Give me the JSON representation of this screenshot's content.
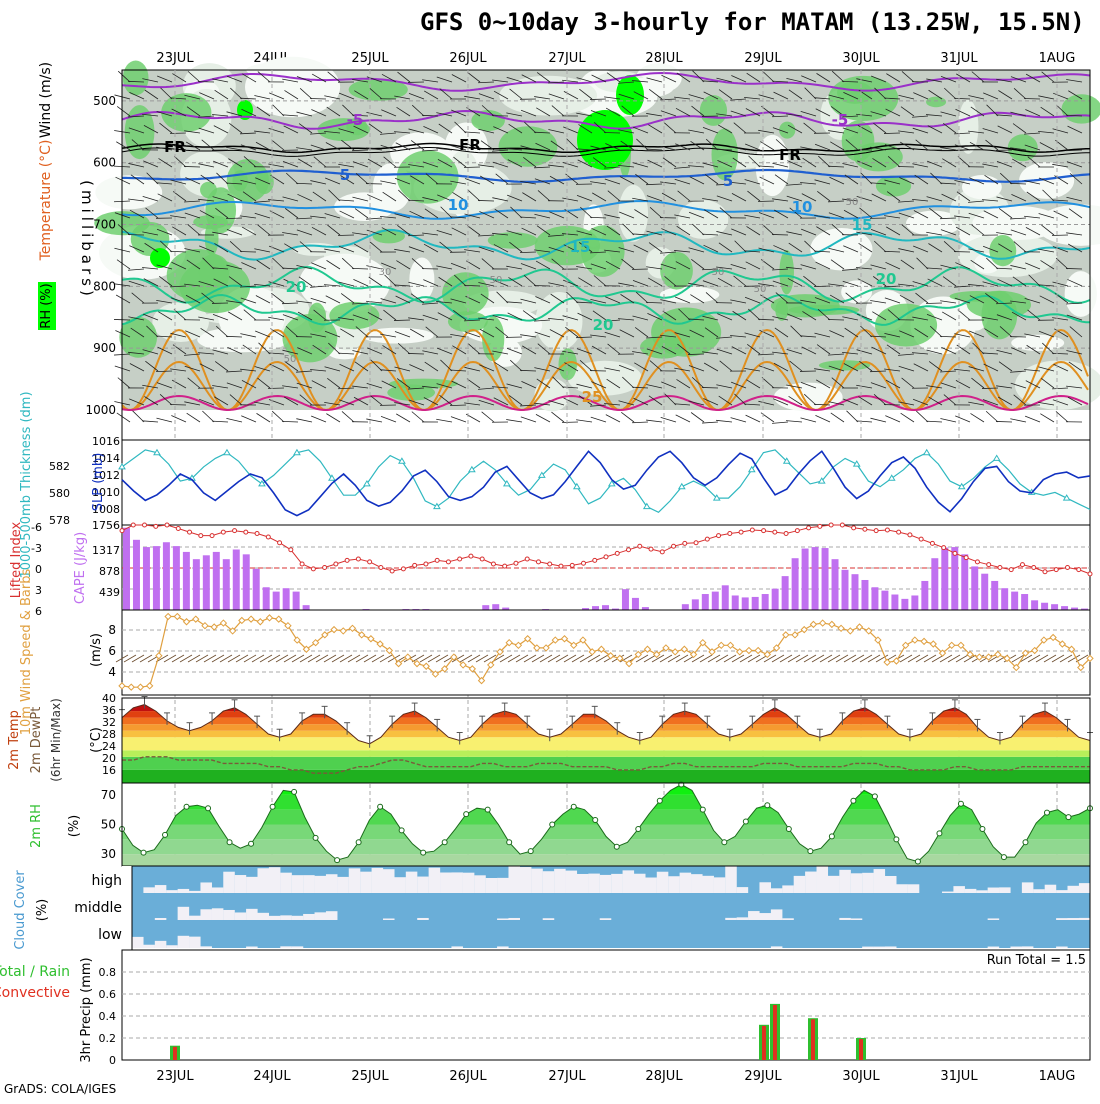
{
  "title": "GFS 0~10day 3-hourly for MATAM (13.25W, 15.5N)",
  "footer": "GrADS: COLA/IGES",
  "dates": [
    "23JUL",
    "24JUL",
    "25JUL",
    "26JUL",
    "27JUL",
    "28JUL",
    "29JUL",
    "30JUL",
    "31JUL",
    "1AUG"
  ],
  "colors": {
    "rh_green": "#6fcf6f",
    "rh_bright": "#00ff00",
    "rh_grey": "#c6cfc6",
    "rh_light": "#e6efe6",
    "temp_purple": "#9a30c9",
    "temp_blue": "#1f5fd0",
    "temp_lightblue": "#2090e0",
    "temp_cyan": "#20b8c0",
    "temp_teal": "#20c890",
    "temp_orange": "#e09020",
    "temp_magenta": "#d0208a",
    "slp": "#1030c0",
    "thickness": "#30b8c0",
    "li": "#d83030",
    "cape": "#c070f0",
    "wind10": "#e0a040",
    "barbs": "#6a4a2a",
    "dewpt": "#7a5a3a",
    "rh2m": "#2fbf2f",
    "cloud_blue": "#6aaed8",
    "cloud_white": "#f2f0f6",
    "precip_total": "#2fbf2f",
    "precip_conv": "#e03020"
  },
  "panels": {
    "upper": {
      "ylabel": "(millibars)",
      "label_wind": "Wind (m/s)",
      "label_temp": "Temperature (°C)",
      "label_rh": "RH (%)",
      "levels": [
        500,
        600,
        700,
        800,
        900,
        1000
      ],
      "isotherm_labels": [
        "-5",
        "-5",
        "5",
        "5",
        "10",
        "10",
        "15",
        "15",
        "20",
        "20",
        "20",
        "25",
        "FR",
        "FR",
        "FR"
      ],
      "rh_labels": [
        "30",
        "50",
        "50",
        "50",
        "50",
        "50"
      ]
    },
    "slp": {
      "label_left": "1000-500mb Thickness (dm)",
      "label_right": "SLP (mb)",
      "ticks_left": [
        "582",
        "580",
        "578"
      ],
      "ticks_right": [
        "1016",
        "1014",
        "1012",
        "1010",
        "1008"
      ]
    },
    "cape": {
      "label_left": "Lifted Index",
      "label_right": "CAPE (J/kg)",
      "ticks_left": [
        "-6",
        "-3",
        "0",
        "3",
        "6"
      ],
      "ticks_right": [
        "1756",
        "1317",
        "878",
        "439"
      ]
    },
    "wind10": {
      "label": "10m Wind Speed & Barbs",
      "unit": "(m/s)",
      "ticks": [
        "8",
        "6",
        "4"
      ]
    },
    "temp2m": {
      "label": "2m Temp 2m DewPt (6hr Min/Max)",
      "unit": "(°C)",
      "ticks": [
        "40",
        "36",
        "32",
        "28",
        "24",
        "20",
        "16"
      ]
    },
    "rh2m": {
      "label": "2m RH",
      "unit": "(%)",
      "ticks": [
        "70",
        "50",
        "30"
      ]
    },
    "cloud": {
      "label": "Cloud Cover",
      "unit": "(%)",
      "rows": [
        "high",
        "middle",
        "low"
      ]
    },
    "precip": {
      "label_total": "Total / Rain",
      "label_conv": "Convective",
      "ylabel": "3hr Precip (mm)",
      "ticks": [
        "0.8",
        "0.6",
        "0.4",
        "0.2",
        "0"
      ],
      "run_total": "Run Total = 1.5"
    }
  },
  "chart_data": [
    {
      "type": "line",
      "title": "SLP (mb) / 1000-500mb Thickness (dm)",
      "x_unit": "3-hourly steps from 22 JUL 12Z",
      "series": [
        {
          "name": "SLP (mb)",
          "values": [
            1011.8,
            1010.6,
            1009.6,
            1010.2,
            1011.2,
            1012.4,
            1011.8,
            1010.4,
            1009.6,
            1010.6,
            1011.6,
            1012.4,
            1012.0,
            1010.4,
            1008.6,
            1008.0,
            1008.6,
            1010.0,
            1011.4,
            1012.4,
            1011.2,
            1009.6,
            1009.0,
            1009.4,
            1010.6,
            1012.2,
            1012.8,
            1011.6,
            1010.0,
            1009.6,
            1010.0,
            1011.0,
            1012.6,
            1013.2,
            1011.8,
            1010.4,
            1009.8,
            1010.2,
            1011.6,
            1013.2,
            1014.8,
            1013.6,
            1011.8,
            1010.8,
            1011.2,
            1012.8,
            1014.2,
            1014.8,
            1013.6,
            1012.0,
            1011.2,
            1012.0,
            1013.4,
            1014.6,
            1014.0,
            1012.0,
            1010.2,
            1010.8,
            1012.4,
            1013.8,
            1014.8,
            1013.0,
            1011.0,
            1009.8,
            1010.6,
            1012.2,
            1013.6,
            1014.2,
            1013.0,
            1011.0,
            1009.4,
            1008.4,
            1009.8,
            1011.6,
            1013.0,
            1013.2,
            1011.6,
            1010.6,
            1010.4,
            1011.8,
            1012.4,
            1012.6,
            1012.0,
            1012.2
          ]
        },
        {
          "name": "1000-500mb Thickness (dm)",
          "values": [
            581.6,
            582.2,
            582.8,
            582.6,
            581.8,
            580.6,
            580.8,
            581.6,
            582.2,
            582.6,
            582.0,
            581.0,
            580.4,
            581.0,
            581.8,
            582.6,
            582.8,
            582.0,
            580.8,
            579.6,
            579.6,
            580.4,
            581.6,
            582.4,
            582.0,
            580.8,
            579.2,
            578.8,
            579.4,
            580.6,
            581.4,
            582.0,
            581.4,
            580.4,
            579.6,
            580.0,
            581.0,
            581.8,
            581.4,
            580.2,
            579.0,
            579.4,
            580.4,
            580.8,
            580.0,
            578.8,
            578.4,
            579.2,
            580.2,
            580.6,
            580.2,
            579.4,
            579.4,
            580.2,
            581.4,
            582.6,
            582.8,
            582.0,
            581.2,
            580.4,
            580.6,
            581.6,
            582.2,
            581.8,
            580.6,
            580.2,
            580.8,
            581.4,
            582.2,
            582.6,
            581.8,
            580.6,
            580.2,
            580.8,
            581.6,
            582.2,
            581.4,
            580.4,
            579.8,
            579.6,
            579.8,
            579.4,
            579.0,
            578.6
          ]
        }
      ],
      "ylim_slp": [
        1007,
        1016
      ],
      "ylim_thickness": [
        577.5,
        583.5
      ]
    },
    {
      "type": "bar",
      "title": "CAPE (J/kg) / Lifted Index",
      "series": [
        {
          "name": "CAPE (J/kg)",
          "values": [
            1700,
            1450,
            1300,
            1320,
            1400,
            1320,
            1200,
            1050,
            1130,
            1200,
            1050,
            1250,
            1150,
            850,
            470,
            380,
            450,
            380,
            100,
            0,
            0,
            0,
            0,
            0,
            20,
            0,
            0,
            0,
            20,
            20,
            20,
            0,
            0,
            0,
            0,
            0,
            100,
            120,
            50,
            0,
            0,
            0,
            20,
            0,
            0,
            0,
            40,
            80,
            100,
            30,
            430,
            250,
            60,
            0,
            0,
            0,
            120,
            220,
            330,
            380,
            510,
            300,
            260,
            270,
            330,
            440,
            700,
            1070,
            1270,
            1300,
            1280,
            1050,
            830,
            740,
            620,
            470,
            400,
            320,
            230,
            300,
            600,
            1070,
            1290,
            1300,
            1150,
            900,
            750,
            600,
            450,
            380,
            330,
            200,
            150,
            120,
            80,
            50,
            30
          ]
        },
        {
          "name": "Lifted Index",
          "values": [
            -5.2,
            -6,
            -6,
            -5.8,
            -6,
            -5.5,
            -5,
            -4.5,
            -4.5,
            -5,
            -5.2,
            -5,
            -4.8,
            -4.3,
            -3.5,
            -2.5,
            -0.5,
            0.2,
            0,
            -0.5,
            -1,
            -1.2,
            -0.8,
            0,
            0.5,
            0.2,
            -0.3,
            -0.5,
            -1,
            -0.8,
            -1.2,
            -1.6,
            -1.2,
            -0.5,
            -0.2,
            -0.6,
            -1.2,
            -0.8,
            -0.5,
            -0.2,
            -0.3,
            -0.6,
            -1,
            -1.5,
            -2,
            -2.5,
            -3,
            -2.6,
            -2.2,
            -3,
            -3.4,
            -3.5,
            -4,
            -4.5,
            -4.8,
            -5,
            -5.3,
            -5.2,
            -5,
            -4.8,
            -5.2,
            -5.6,
            -5.8,
            -6,
            -6,
            -5.6,
            -5.4,
            -5.2,
            -5.3,
            -5,
            -4.6,
            -4,
            -3.4,
            -2.8,
            -2,
            -1.4,
            -0.8,
            -0.4,
            0,
            0.3,
            -0.4,
            0,
            0.6,
            0.3,
            0,
            0.3,
            0.9
          ]
        }
      ],
      "ylim_cape": [
        0,
        1756
      ],
      "ylim_li": [
        6,
        -6
      ]
    },
    {
      "type": "line",
      "title": "10m Wind Speed (m/s)",
      "series": [
        {
          "name": "10m Wind Speed",
          "values": [
            3.7,
            3.6,
            3.6,
            3.7,
            6.0,
            9.0,
            9.0,
            8.6,
            8.8,
            8.3,
            8.2,
            8.5,
            7.9,
            8.7,
            8.8,
            8.6,
            8.9,
            8.8,
            8.3,
            7.2,
            6.5,
            7.0,
            7.6,
            8.0,
            7.9,
            8.1,
            7.6,
            7.3,
            6.9,
            6.4,
            5.4,
            5.9,
            5.4,
            5.2,
            4.6,
            5.0,
            5.9,
            5.3,
            5.0,
            4.1,
            5.3,
            6.3,
            7.0,
            6.8,
            7.3,
            6.6,
            6.6,
            7.2,
            7.3,
            6.8,
            7.2,
            6.3,
            6.5,
            6.0,
            5.8,
            5.4,
            6.1,
            6.5,
            6.1,
            6.6,
            6.3,
            6.5,
            6.1,
            7.0,
            6.3,
            6.8,
            6.8,
            6.3,
            6.4,
            6.4,
            6.1,
            6.6,
            7.6,
            7.6,
            8.0,
            8.4,
            8.5,
            8.4,
            8.1,
            7.9,
            8.2,
            7.9,
            7.2,
            5.5,
            5.6,
            6.8,
            7.2,
            7.1,
            6.9,
            6.2,
            6.8,
            6.8,
            6.1,
            5.9,
            5.9,
            6.1,
            5.8,
            5.1,
            6.2,
            6.4,
            7.2,
            7.4,
            6.9,
            6.5,
            5.1,
            5.8
          ]
        }
      ],
      "ylim": [
        3,
        9.5
      ]
    },
    {
      "type": "area",
      "title": "2m Temp / 2m DewPt (°C)",
      "series": [
        {
          "name": "2m Temp",
          "values": [
            34,
            37,
            38,
            36,
            33,
            31,
            30,
            31,
            33,
            36,
            37,
            35,
            32,
            29,
            28,
            29,
            33,
            35,
            35,
            33,
            30,
            27,
            26,
            28,
            32,
            35,
            36,
            34,
            31,
            28,
            27,
            28,
            32,
            35,
            36,
            35,
            32,
            29,
            28,
            29,
            32,
            35,
            35,
            33,
            30,
            28,
            27,
            28,
            32,
            35,
            36,
            35,
            32,
            29,
            28,
            29,
            32,
            35,
            37,
            35,
            32,
            29,
            28,
            29,
            33,
            36,
            37,
            35,
            32,
            29,
            28,
            29,
            33,
            36,
            37,
            35,
            31,
            28,
            27,
            28,
            32,
            35,
            36,
            34,
            31,
            28,
            27
          ]
        },
        {
          "name": "2m DewPt",
          "values": [
            21,
            21,
            22,
            22,
            22,
            21,
            21,
            21,
            21,
            20,
            20,
            20,
            20,
            19,
            19,
            18,
            18,
            17,
            17,
            17,
            18,
            19,
            19,
            20,
            21,
            21,
            20,
            19,
            19,
            19,
            19,
            19,
            20,
            20,
            19,
            19,
            19,
            20,
            20,
            20,
            19,
            19,
            19,
            19,
            18,
            18,
            18,
            19,
            19,
            20,
            20,
            19,
            19,
            19,
            19,
            19,
            19,
            20,
            20,
            20,
            19,
            19,
            19,
            19,
            19,
            20,
            20,
            20,
            19,
            19,
            18,
            18,
            18,
            18,
            19,
            19,
            18,
            18,
            18,
            18,
            19,
            19,
            19,
            19,
            19,
            19,
            19
          ]
        }
      ],
      "ylim": [
        14,
        40
      ]
    },
    {
      "type": "area",
      "title": "2m RH (%)",
      "series": [
        {
          "name": "2m RH",
          "values": [
            47,
            36,
            31,
            33,
            43,
            56,
            62,
            63,
            61,
            49,
            38,
            34,
            37,
            48,
            62,
            73,
            72,
            55,
            41,
            32,
            26,
            28,
            38,
            53,
            62,
            57,
            46,
            37,
            31,
            32,
            38,
            47,
            57,
            61,
            60,
            50,
            38,
            30,
            32,
            40,
            50,
            57,
            62,
            60,
            53,
            42,
            35,
            38,
            47,
            57,
            66,
            73,
            77,
            73,
            60,
            46,
            38,
            42,
            52,
            61,
            63,
            58,
            47,
            37,
            32,
            34,
            42,
            55,
            66,
            73,
            69,
            55,
            40,
            27,
            25,
            32,
            44,
            56,
            64,
            60,
            47,
            35,
            28,
            28,
            38,
            51,
            58,
            60,
            55,
            57,
            61
          ]
        }
      ],
      "ylim": [
        22,
        78
      ]
    },
    {
      "type": "heatmap",
      "title": "Cloud Cover (%)",
      "rows": [
        "high",
        "middle",
        "low"
      ],
      "note": "blue = cloudy, white = clear; high layer mostly clear except near 23JUL, 25-26JUL and after 30JUL"
    },
    {
      "type": "bar",
      "title": "3hr Precip (mm)",
      "categories": [
        "23JUL",
        "29JUL 00Z",
        "29JUL 03Z",
        "29JUL 12Z",
        "30JUL"
      ],
      "series": [
        {
          "name": "Total / Rain",
          "values": [
            0.13,
            0.32,
            0.51,
            0.38,
            0.2
          ]
        },
        {
          "name": "Convective",
          "values": [
            0.12,
            0.31,
            0.5,
            0.37,
            0.19
          ]
        }
      ],
      "run_total": 1.5,
      "ylim": [
        0,
        1
      ]
    }
  ]
}
